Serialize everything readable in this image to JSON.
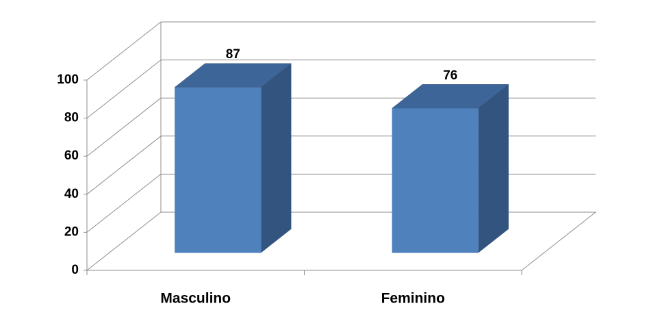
{
  "chart_data": {
    "type": "bar3d",
    "categories": [
      "Masculino",
      "Feminino"
    ],
    "values": [
      87,
      76
    ],
    "color": "#4f81bd",
    "ylim": [
      0,
      100
    ],
    "yticks": [
      0,
      20,
      40,
      60,
      80,
      100
    ],
    "grid": true
  }
}
